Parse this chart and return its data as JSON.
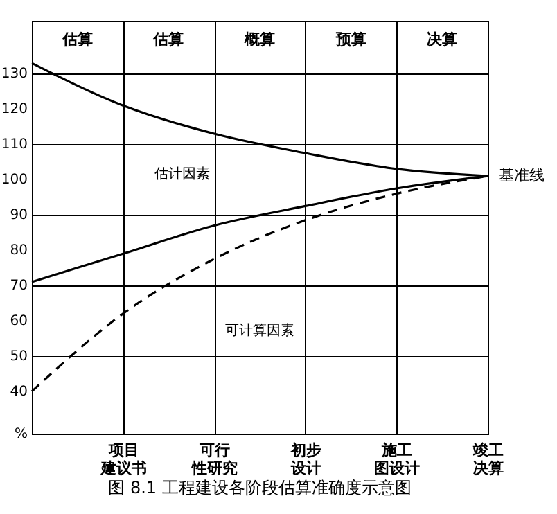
{
  "chart_data": {
    "type": "line",
    "title": "图 8.1  工程建设各阶段估算准确度示意图",
    "categories": [
      null,
      "项目建议书",
      "可行性研究",
      "初步设计",
      "施工图设计",
      "竣工决算"
    ],
    "ylim": [
      28,
      145
    ],
    "yticks": [
      {
        "value": 28,
        "label": "%"
      },
      40,
      50,
      60,
      70,
      80,
      90,
      100,
      110,
      120,
      130
    ],
    "grid": true,
    "series": [
      {
        "color": "#000000",
        "line_style": "solid",
        "values": [
          133,
          121,
          113,
          107.5,
          103,
          101
        ]
      },
      {
        "color": "#000000",
        "line_style": "solid",
        "values": [
          71,
          79,
          87,
          92.5,
          97.5,
          101
        ]
      },
      {
        "color": "#000000",
        "line_style": "dashed",
        "values": [
          40,
          62,
          77.5,
          88.5,
          96,
          101
        ]
      }
    ],
    "annotations": [
      "估算",
      "估算",
      "概算",
      "预算",
      "决算",
      "估计因素",
      "可计算因素",
      {
        "text": "基准线",
        "x": "竣工决算",
        "y": 101
      }
    ]
  }
}
